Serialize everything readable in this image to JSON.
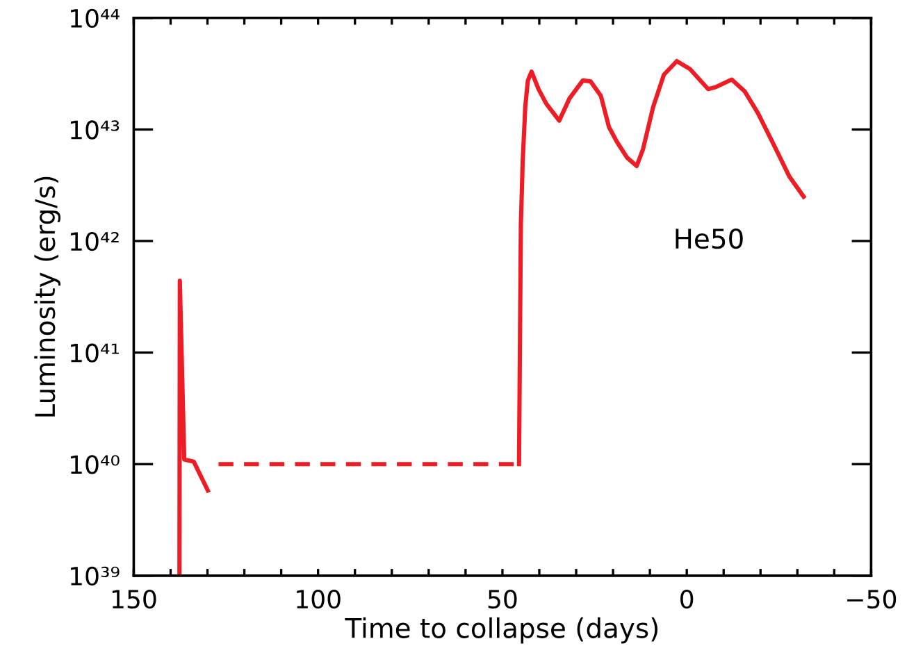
{
  "chart_data": {
    "type": "line",
    "xlabel": "Time to collapse (days)",
    "ylabel": "Luminosity (erg/s)",
    "log": "y",
    "grid": false,
    "legend": false,
    "marker": "none",
    "xlim": [
      150,
      -50
    ],
    "xticks": [
      150,
      {
        "value": 140,
        "label": null
      },
      {
        "value": 130,
        "label": null
      },
      {
        "value": 120,
        "label": null
      },
      {
        "value": 110,
        "label": null
      },
      100,
      {
        "value": 90,
        "label": null
      },
      {
        "value": 80,
        "label": null
      },
      {
        "value": 70,
        "label": null
      },
      {
        "value": 60,
        "label": null
      },
      50,
      {
        "value": 40,
        "label": null
      },
      {
        "value": 30,
        "label": null
      },
      {
        "value": 20,
        "label": null
      },
      {
        "value": 10,
        "label": null
      },
      0,
      {
        "value": -10,
        "label": null
      },
      {
        "value": -20,
        "label": null
      },
      {
        "value": -30,
        "label": null
      },
      {
        "value": -40,
        "label": null
      },
      {
        "value": -50,
        "label": "−50"
      }
    ],
    "ylim": [
      1e+39,
      1e+44
    ],
    "yticks": [
      {
        "value": 1e+39,
        "label": "10³⁹"
      },
      {
        "value": 1e+40,
        "label": "10⁴⁰"
      },
      {
        "value": 1e+41,
        "label": "10⁴¹"
      },
      {
        "value": 1e+42,
        "label": "10⁴²"
      },
      {
        "value": 1e+43,
        "label": "10⁴³"
      },
      {
        "value": 1e+44,
        "label": "10⁴⁴"
      }
    ],
    "annotations": [
      "He50"
    ],
    "series": [
      {
        "color": "#ee1c25",
        "line_style": "solid",
        "x": [
          137.6,
          137.5,
          136.3,
          133.7,
          129.9
        ],
        "values": [
          1e+39,
          4.4e+41,
          1.1e+40,
          1.05e+40,
          5.8e+39
        ]
      },
      {
        "color": "#ee1c25",
        "line_style": "dashed",
        "x": [
          127,
          45.5
        ],
        "values": [
          1e+40,
          1e+40
        ]
      },
      {
        "color": "#ee1c25",
        "line_style": "solid",
        "x": [
          45.5,
          45.0,
          44.5,
          43.8,
          43.1,
          42.1,
          40.2,
          38.1,
          34.6,
          31.8,
          28.2,
          26.1,
          23.3,
          21.1,
          19.0,
          16.2,
          13.6,
          11.9,
          9.1,
          6.2,
          2.7,
          -0.8,
          -5.8,
          -7.9,
          -12.2,
          -15.7,
          -19.3,
          -23.5,
          -27.8,
          -31.7
        ],
        "values": [
          1e+40,
          1.4e+42,
          5.2e+42,
          1.6e+43,
          2.75e+43,
          3.3e+43,
          2.3e+43,
          1.7e+43,
          1.2e+43,
          1.9e+43,
          2.75e+43,
          2.7e+43,
          2e+43,
          1.05e+43,
          7.8e+42,
          5.6e+42,
          4.7e+42,
          6.6e+42,
          1.6e+43,
          3.1e+43,
          4.1e+43,
          3.5e+43,
          2.3e+43,
          2.4e+43,
          2.8e+43,
          2.2e+43,
          1.4e+43,
          7.4e+42,
          3.8e+42,
          2.5e+42
        ]
      }
    ]
  }
}
